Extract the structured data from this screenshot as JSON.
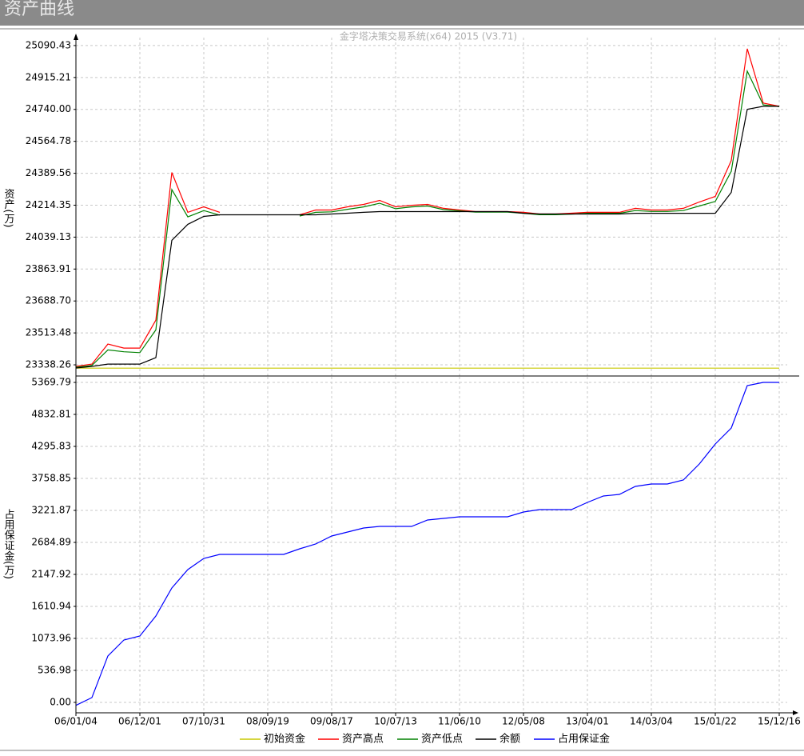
{
  "window_title": "资产曲线",
  "chart_data": [
    {
      "type": "line",
      "title": "金字塔决策交易系统(x64) 2015 (V3.71)",
      "ylabel": "资产(万)",
      "ylim": [
        23277,
        25134
      ],
      "yticks": [
        25090.43,
        24915.21,
        {
          "value": 24740,
          "label": "24740.00"
        },
        24564.78,
        24389.56,
        24214.35,
        24039.13,
        23863.91,
        {
          "value": 23688.7,
          "label": "23688.70"
        },
        23513.48,
        23338.26
      ],
      "grid": true,
      "series": [
        {
          "name": "初始资金",
          "color": "#c8c800",
          "values": [
            23320,
            23320,
            23320,
            23320,
            23320,
            23320,
            23320,
            23320,
            23320,
            23320,
            23320,
            23320,
            23320,
            23320,
            23320,
            23320,
            23320,
            23320,
            23320,
            23320,
            23320,
            23320,
            23320,
            23320,
            23320,
            23320,
            23320,
            23320,
            23320,
            23320,
            23320,
            23320,
            23320,
            23320,
            23320,
            23320,
            23320,
            23320,
            23320,
            23320,
            23320,
            23320,
            23320,
            23320,
            23320
          ]
        },
        {
          "name": "资产高点",
          "color": "#ff0000",
          "values": [
            23329.5,
            23342.6,
            23452,
            23430,
            23430,
            23583.6,
            24394,
            24175,
            24205.6,
            24175,
            null,
            null,
            null,
            null,
            24161.8,
            24188,
            24188,
            24205.6,
            24218.8,
            24240.6,
            24205.6,
            24214,
            24218.8,
            24197,
            24188,
            24179.3,
            24179.3,
            24179.3,
            24175,
            24166,
            24166,
            24170.5,
            24175,
            24175,
            24175,
            24197,
            24188,
            24188,
            24197,
            24232,
            24262.5,
            24459.7,
            25073,
            24775,
            24757
          ]
        },
        {
          "name": "资产低点",
          "color": "#008000",
          "values": [
            23325,
            23335,
            23420,
            23410,
            23405,
            23530,
            24300,
            24150,
            24185,
            24160,
            null,
            null,
            null,
            null,
            24155,
            24175,
            24178,
            24192,
            24205,
            24225,
            24195,
            24205,
            24210,
            24190,
            24183,
            24176,
            24176,
            24176,
            24170,
            24162,
            24162,
            24165,
            24170,
            24170,
            24170,
            24185,
            24180,
            24180,
            24185,
            24210,
            24235,
            24400,
            24950,
            24765,
            24755
          ]
        },
        {
          "name": "余额",
          "color": "#000000",
          "values": [
            23320.7,
            23329.5,
            23342.6,
            23342.6,
            23342.6,
            23377.7,
            24021.6,
            24109.2,
            24153,
            24161.8,
            24161.8,
            24161.8,
            24161.8,
            24161.8,
            24161.8,
            24161.8,
            24166,
            24170.5,
            24175,
            24179.3,
            24179.3,
            24179.3,
            24179.3,
            24179.3,
            24179.3,
            24179.3,
            24179.3,
            24179.3,
            24170,
            24166,
            24166,
            24166,
            24166,
            24166,
            24166,
            24170,
            24170,
            24170,
            24170,
            24170,
            24170,
            24284.4,
            24740,
            24757,
            24757
          ]
        }
      ]
    },
    {
      "type": "line",
      "ylabel": "占用保证金(万)",
      "ylim": [
        -175,
        5464
      ],
      "yticks": [
        5369.79,
        4832.81,
        4295.83,
        3758.85,
        3221.87,
        2684.89,
        2147.92,
        1610.94,
        1073.96,
        536.98,
        {
          "value": 0,
          "label": "0.00"
        }
      ],
      "grid": true,
      "categories": [
        "06/01/04",
        null,
        null,
        null,
        "06/12/01",
        null,
        null,
        null,
        "07/10/31",
        null,
        null,
        null,
        "08/09/19",
        null,
        null,
        null,
        "09/08/17",
        null,
        null,
        null,
        "10/07/13",
        null,
        null,
        null,
        "11/06/10",
        null,
        null,
        null,
        "12/05/08",
        null,
        null,
        null,
        "13/04/01",
        null,
        null,
        null,
        "14/03/04",
        null,
        null,
        null,
        "15/01/22",
        null,
        null,
        null,
        "15/12/16"
      ],
      "series": [
        {
          "name": "占用保证金",
          "color": "#0000ff",
          "values": [
            -50,
            80,
            779,
            1047,
            1114,
            1450,
            1920,
            2228,
            2416,
            2484,
            2484,
            2484,
            2484,
            2484,
            2578,
            2658,
            2792,
            2859,
            2927,
            2953,
            2953,
            2953,
            3061,
            3088,
            3114,
            3114,
            3114,
            3114,
            3195,
            3235,
            3235,
            3235,
            3356,
            3463,
            3490,
            3625,
            3665,
            3665,
            3732,
            4001,
            4336,
            4605,
            5316,
            5370,
            5370
          ]
        }
      ]
    }
  ]
}
